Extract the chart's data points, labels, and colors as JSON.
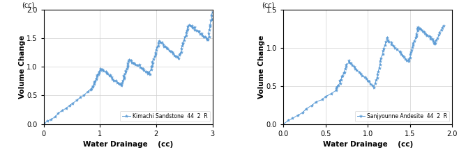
{
  "plot1": {
    "xlabel": "Water Drainage    (cc)",
    "ylabel": "Volume Change",
    "ylabel2": "(cc)",
    "xlim": [
      0.0,
      3.0
    ],
    "ylim": [
      0.0,
      2.0
    ],
    "xticks": [
      0.0,
      1.0,
      2.0,
      3.0
    ],
    "yticks": [
      0.0,
      0.5,
      1.0,
      1.5,
      2.0
    ],
    "legend": "Kimachi Sandstone  44  2  R",
    "color": "#5b9bd5"
  },
  "plot2": {
    "xlabel": "Water Drainage    (cc)",
    "ylabel": "Volume Change",
    "ylabel2": "(cc)",
    "xlim": [
      0.0,
      2.0
    ],
    "ylim": [
      0.0,
      1.5
    ],
    "xticks": [
      0.0,
      0.5,
      1.0,
      1.5,
      2.0
    ],
    "yticks": [
      0.0,
      0.5,
      1.0,
      1.5
    ],
    "legend": "Sanjyounne Andesite  44  2  R",
    "color": "#5b9bd5"
  }
}
